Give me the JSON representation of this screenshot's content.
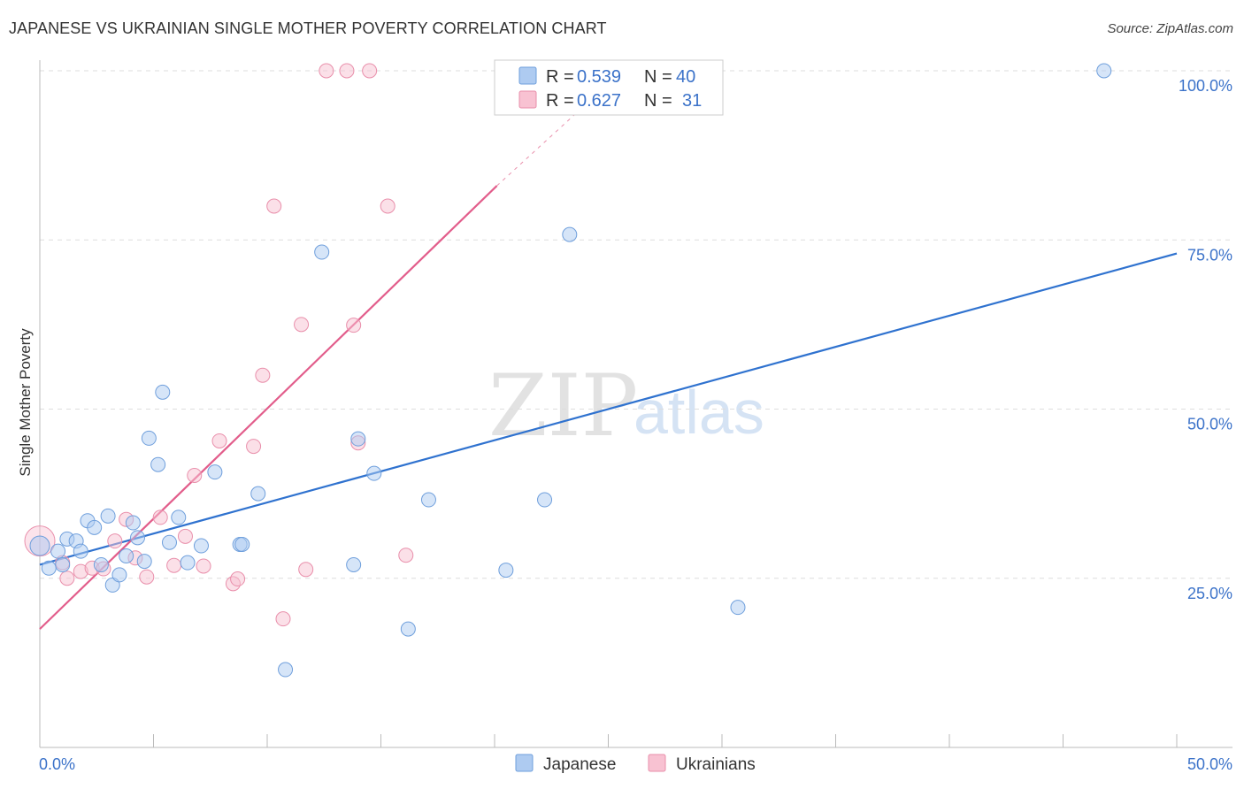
{
  "title": "JAPANESE VS UKRAINIAN SINGLE MOTHER POVERTY CORRELATION CHART",
  "source": "Source: ZipAtlas.com",
  "watermark": {
    "left": "ZIP",
    "right": "atlas"
  },
  "colors": {
    "japanese_fill": "#aecbf1",
    "japanese_stroke": "#6f9fdc",
    "japanese_line": "#2f72cf",
    "ukrainian_fill": "#f8c2d2",
    "ukrainian_stroke": "#e98fab",
    "ukrainian_line": "#e25d8b",
    "grid": "#dddddd",
    "tick_text": "#3b72c9"
  },
  "legend": {
    "r_label": "R =",
    "n_label": "N =",
    "japanese": {
      "r": "0.539",
      "n": "40"
    },
    "ukrainians": {
      "r": "0.627",
      "n": "31"
    }
  },
  "bottom_legend": {
    "japanese": "Japanese",
    "ukrainians": "Ukrainians"
  },
  "chart_data": {
    "type": "scatter",
    "title": "JAPANESE VS UKRAINIAN SINGLE MOTHER POVERTY CORRELATION CHART",
    "xlabel": "",
    "ylabel": "Single Mother Poverty",
    "xlim": [
      0,
      50
    ],
    "ylim": [
      0,
      100
    ],
    "x_tick_labels": [
      "0.0%",
      "50.0%"
    ],
    "y_ticks": [
      25,
      50,
      75,
      100
    ],
    "y_tick_labels": [
      "25.0%",
      "50.0%",
      "75.0%",
      "100.0%"
    ],
    "series": [
      {
        "name": "Japanese",
        "r": 0.539,
        "n": 40,
        "trend": {
          "x": [
            0,
            50
          ],
          "y": [
            27.0,
            73.0
          ]
        },
        "points": [
          [
            0.0,
            29.8
          ],
          [
            0.4,
            26.5
          ],
          [
            0.8,
            29.0
          ],
          [
            1.0,
            27.0
          ],
          [
            1.2,
            30.8
          ],
          [
            1.6,
            30.5
          ],
          [
            1.8,
            29.0
          ],
          [
            2.1,
            33.5
          ],
          [
            2.4,
            32.5
          ],
          [
            2.7,
            27.0
          ],
          [
            3.0,
            34.2
          ],
          [
            3.2,
            24.0
          ],
          [
            3.5,
            25.5
          ],
          [
            3.8,
            28.3
          ],
          [
            4.1,
            33.2
          ],
          [
            4.3,
            31.0
          ],
          [
            4.6,
            27.5
          ],
          [
            4.8,
            45.7
          ],
          [
            5.2,
            41.8
          ],
          [
            5.4,
            52.5
          ],
          [
            5.7,
            30.3
          ],
          [
            6.1,
            34.0
          ],
          [
            6.5,
            27.3
          ],
          [
            7.1,
            29.8
          ],
          [
            7.7,
            40.7
          ],
          [
            8.8,
            30.0
          ],
          [
            8.9,
            30.0
          ],
          [
            9.6,
            37.5
          ],
          [
            10.8,
            11.5
          ],
          [
            12.4,
            73.2
          ],
          [
            13.8,
            27.0
          ],
          [
            14.0,
            45.6
          ],
          [
            14.7,
            40.5
          ],
          [
            16.2,
            17.5
          ],
          [
            17.1,
            36.6
          ],
          [
            20.5,
            26.2
          ],
          [
            22.2,
            36.6
          ],
          [
            23.3,
            75.8
          ],
          [
            30.7,
            20.7
          ],
          [
            46.8,
            100.0
          ]
        ]
      },
      {
        "name": "Ukrainians",
        "r": 0.627,
        "n": 31,
        "trend": {
          "x": [
            0,
            20.1
          ],
          "y": [
            17.5,
            83.0
          ]
        },
        "trend_extension": {
          "x": [
            20.1,
            24.0
          ],
          "y": [
            83.0,
            95.0
          ]
        },
        "points": [
          [
            0.0,
            30.5
          ],
          [
            1.0,
            27.3
          ],
          [
            1.2,
            25.0
          ],
          [
            1.8,
            26.0
          ],
          [
            2.3,
            26.5
          ],
          [
            2.8,
            26.4
          ],
          [
            3.3,
            30.5
          ],
          [
            3.8,
            33.7
          ],
          [
            4.2,
            28.0
          ],
          [
            4.7,
            25.2
          ],
          [
            5.3,
            34.0
          ],
          [
            5.9,
            26.9
          ],
          [
            6.4,
            31.2
          ],
          [
            6.8,
            40.2
          ],
          [
            7.2,
            26.8
          ],
          [
            7.9,
            45.3
          ],
          [
            8.5,
            24.2
          ],
          [
            8.7,
            24.9
          ],
          [
            9.4,
            44.5
          ],
          [
            9.8,
            55.0
          ],
          [
            10.3,
            80.0
          ],
          [
            10.7,
            19.0
          ],
          [
            11.5,
            62.5
          ],
          [
            11.7,
            26.3
          ],
          [
            12.6,
            100.0
          ],
          [
            13.5,
            100.0
          ],
          [
            13.8,
            62.4
          ],
          [
            14.0,
            45.0
          ],
          [
            14.5,
            100.0
          ],
          [
            15.3,
            80.0
          ],
          [
            16.1,
            28.4
          ]
        ]
      }
    ]
  }
}
